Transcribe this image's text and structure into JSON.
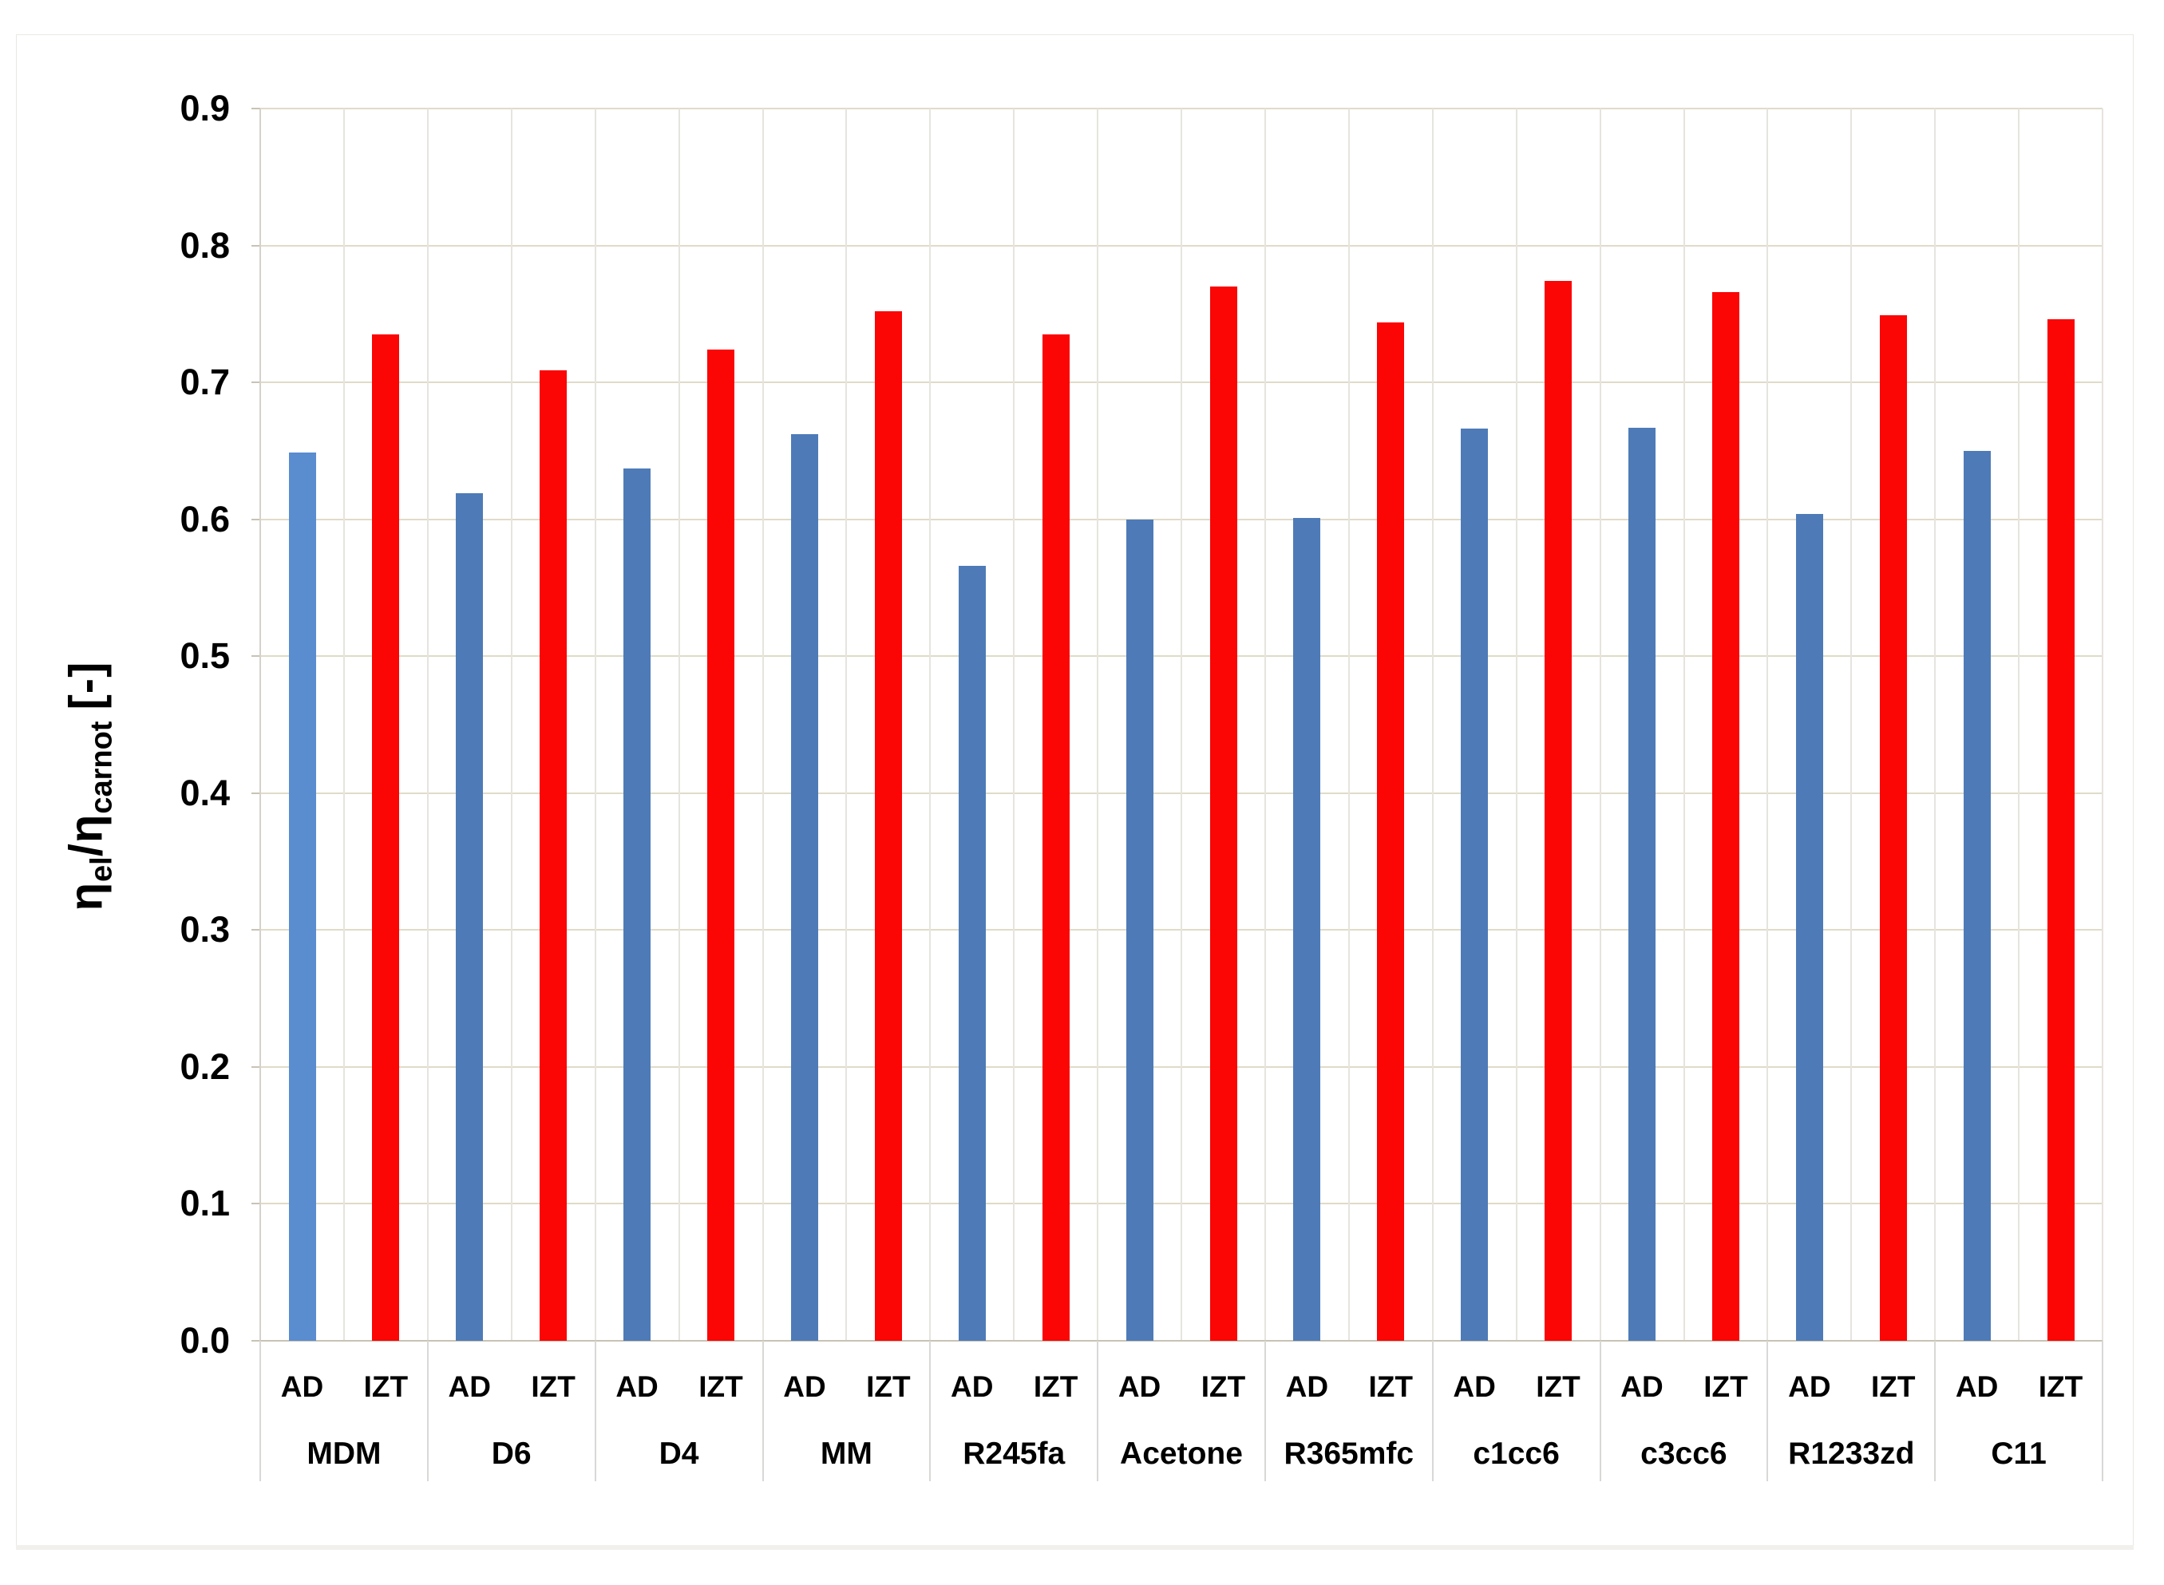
{
  "chart_data": {
    "type": "bar",
    "title": "",
    "categories": [
      "MDM",
      "D6",
      "D4",
      "MM",
      "R245fa",
      "Acetone",
      "R365mfc",
      "c1cc6",
      "c3cc6",
      "R1233zd",
      "C11"
    ],
    "bar_sublabels": [
      "AD",
      "IZT"
    ],
    "series": [
      {
        "name": "AD",
        "color": "#4e7bb7",
        "first_bar_color": "#5a8cd0",
        "values": [
          0.649,
          0.619,
          0.637,
          0.662,
          0.566,
          0.6,
          0.601,
          0.666,
          0.667,
          0.604,
          0.65
        ]
      },
      {
        "name": "IZT",
        "color": "#fb0505",
        "values": [
          0.735,
          0.709,
          0.724,
          0.752,
          0.735,
          0.77,
          0.744,
          0.774,
          0.766,
          0.749,
          0.746
        ]
      }
    ],
    "ylim": [
      0.0,
      0.9
    ],
    "ytick_step": 0.1,
    "ylabel": "ηel/ηcarnot [-]",
    "xlabel": "",
    "grid": true,
    "legend": "none"
  },
  "axis": {
    "tick_labels": [
      "0.9",
      "0.8",
      "0.7",
      "0.6",
      "0.5",
      "0.4",
      "0.3",
      "0.2",
      "0.1",
      "0.0"
    ],
    "title_eta_1": "η",
    "title_sub_el": "el",
    "title_slash": "/",
    "title_eta_2": "η",
    "title_sub_carnot": "carnot",
    "title_units": "[-]"
  },
  "colors": {
    "h_gridline": "#e0dbc8",
    "v_gridline": "#e6e4de",
    "axis_line": "#c8c3b5",
    "axis_vline": "#d4d2cb",
    "separator": "#d8d8d6",
    "text": "#000000",
    "chart_border": "#e9e8e5",
    "background": "#ffffff"
  }
}
